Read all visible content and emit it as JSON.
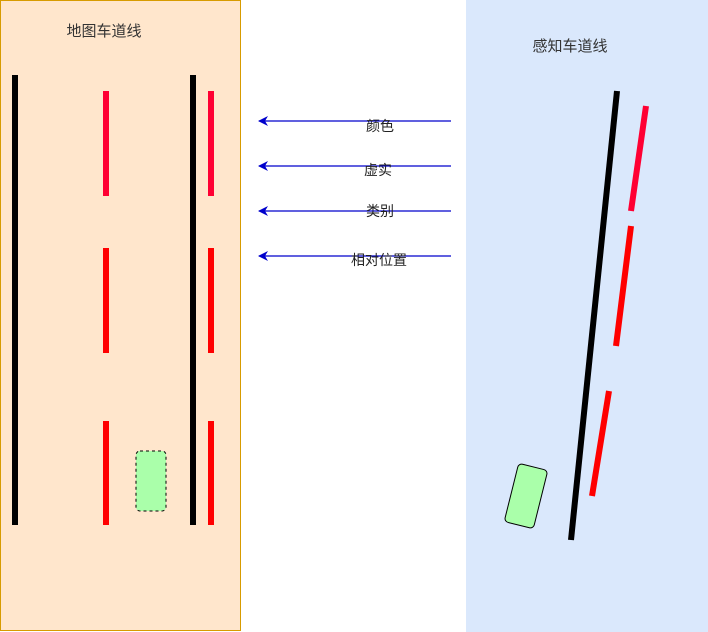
{
  "map_panel": {
    "title": "地图车道线",
    "bg_color": "#FFE6CC",
    "border_color": "#D79B00"
  },
  "perception_panel": {
    "title": "感知车道线",
    "bg_color": "#DAE8FC"
  },
  "attributes": [
    {
      "label": "颜色"
    },
    {
      "label": "虚实"
    },
    {
      "label": "类别"
    },
    {
      "label": "相对位置"
    }
  ],
  "colors": {
    "solid_line": "#000000",
    "dashed_line": "#FF0000",
    "dashed_line_alt": "#FF0033",
    "arrow": "#0000CC",
    "vehicle_fill": "#AAFFAA"
  }
}
